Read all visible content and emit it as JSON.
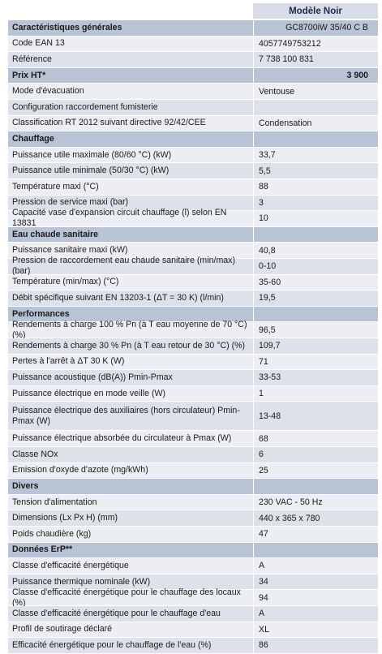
{
  "header": {
    "model_label": "Modèle Noir"
  },
  "rows": [
    {
      "type": "section",
      "label": "Caractéristiques générales",
      "value": "GC8700iW 35/40 C  B"
    },
    {
      "type": "data",
      "label": "Code EAN 13",
      "value": "4057749753212"
    },
    {
      "type": "data",
      "label": "Référence",
      "value": "7 738 100 831"
    },
    {
      "type": "section",
      "label": "Prix HT*",
      "value": "3 900"
    },
    {
      "type": "data",
      "label": "Mode d'évacuation",
      "value": "Ventouse"
    },
    {
      "type": "data",
      "label": "Configuration raccordement fumisterie",
      "value": ""
    },
    {
      "type": "data",
      "label": "Classification RT 2012 suivant directive 92/42/CEE",
      "value": "Condensation"
    },
    {
      "type": "section",
      "label": "Chauffage",
      "value": ""
    },
    {
      "type": "data",
      "label": "Puissance utile maximale (80/60 °C) (kW)",
      "value": "33,7"
    },
    {
      "type": "data",
      "label": "Puissance utile minimale (50/30 °C) (kW)",
      "value": "5,5"
    },
    {
      "type": "data",
      "label": "Température maxi (°C)",
      "value": "88"
    },
    {
      "type": "data",
      "label": "Pression de service maxi (bar)",
      "value": "3"
    },
    {
      "type": "data",
      "label": "Capacité vase d'expansion circuit chauffage (l) selon EN 13831",
      "value": "10"
    },
    {
      "type": "section",
      "label": "Eau chaude sanitaire",
      "value": ""
    },
    {
      "type": "data",
      "label": "Puissance sanitaire maxi (kW)",
      "value": "40,8"
    },
    {
      "type": "data",
      "label": "Pression de raccordement eau chaude sanitaire (min/max) (bar)",
      "value": "0-10"
    },
    {
      "type": "data",
      "label": "Température (min/max) (°C)",
      "value": "35-60"
    },
    {
      "type": "data",
      "label": "Débit spécifique suivant EN 13203-1 (ΔT = 30 K) (l/min)",
      "value": "19,5"
    },
    {
      "type": "section",
      "label": "Performances",
      "value": ""
    },
    {
      "type": "data",
      "label": "Rendements à charge 100 % Pn (à T eau moyenne de 70 °C) (%)",
      "value": "96,5"
    },
    {
      "type": "data",
      "label": "Rendements à charge 30 % Pn (à T eau retour de 30 °C) (%)",
      "value": "109,7"
    },
    {
      "type": "data",
      "label": "Pertes à l'arrêt à ΔT 30 K (W)",
      "value": "71"
    },
    {
      "type": "data",
      "label": "Puissance acoustique (dB(A)) Pmin-Pmax",
      "value": "33-53"
    },
    {
      "type": "data",
      "label": "Puissance électrique en mode veille (W)",
      "value": "1"
    },
    {
      "type": "data",
      "label": "Puissance électrique des auxiliaires (hors circulateur) Pmin-Pmax (W)",
      "value": "13-48",
      "tall": true
    },
    {
      "type": "data",
      "label": "Puissance électrique absorbée du circulateur à Pmax (W)",
      "value": "68"
    },
    {
      "type": "data",
      "label": "Classe NOx",
      "value": "6"
    },
    {
      "type": "data",
      "label": "Emission d'oxyde d'azote (mg/kWh)",
      "value": "25"
    },
    {
      "type": "section",
      "label": "Divers",
      "value": ""
    },
    {
      "type": "data",
      "label": "Tension d'alimentation",
      "value": "230 VAC - 50 Hz"
    },
    {
      "type": "data",
      "label": "Dimensions (Lx Px H) (mm)",
      "value": "440 x 365 x 780"
    },
    {
      "type": "data",
      "label": "Poids chaudière (kg)",
      "value": "47"
    },
    {
      "type": "section",
      "label": "Données ErP**",
      "value": ""
    },
    {
      "type": "data",
      "label": "Classe d'efficacité énergétique",
      "value": "A"
    },
    {
      "type": "data",
      "label": "Puissance thermique nominale (kW)",
      "value": "34"
    },
    {
      "type": "data",
      "label": "Classe d'efficacité énergétique pour le chauffage des locaux (%)",
      "value": "94"
    },
    {
      "type": "data",
      "label": "Classe d'efficacité énergétique pour le chauffage d'eau",
      "value": "A"
    },
    {
      "type": "data",
      "label": "Profil de soutirage déclaré",
      "value": "XL"
    },
    {
      "type": "data",
      "label": "Efficacité énergétique pour le chauffage de l'eau (%)",
      "value": "86"
    }
  ]
}
